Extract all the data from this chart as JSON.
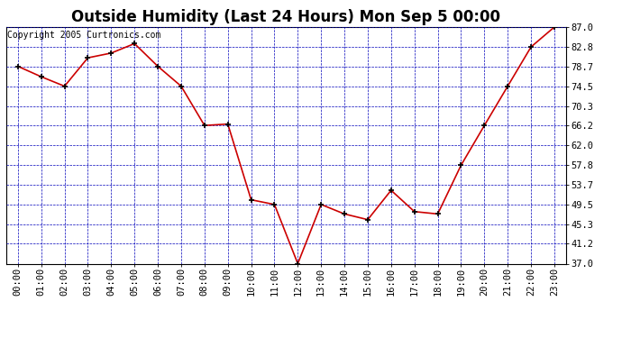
{
  "title": "Outside Humidity (Last 24 Hours) Mon Sep 5 00:00",
  "copyright": "Copyright 2005 Curtronics.com",
  "x_labels": [
    "00:00",
    "01:00",
    "02:00",
    "03:00",
    "04:00",
    "05:00",
    "06:00",
    "07:00",
    "08:00",
    "09:00",
    "10:00",
    "11:00",
    "12:00",
    "13:00",
    "14:00",
    "15:00",
    "16:00",
    "17:00",
    "18:00",
    "19:00",
    "20:00",
    "21:00",
    "22:00",
    "23:00"
  ],
  "y_values": [
    78.7,
    76.5,
    74.5,
    80.5,
    81.5,
    83.5,
    78.7,
    74.5,
    66.2,
    66.5,
    50.5,
    49.5,
    37.0,
    49.5,
    47.5,
    46.3,
    52.5,
    48.0,
    47.5,
    57.8,
    66.2,
    74.5,
    82.8,
    87.0
  ],
  "y_ticks": [
    37.0,
    41.2,
    45.3,
    49.5,
    53.7,
    57.8,
    62.0,
    66.2,
    70.3,
    74.5,
    78.7,
    82.8,
    87.0
  ],
  "ylim": [
    37.0,
    87.0
  ],
  "line_color": "#cc0000",
  "marker_color": "#000000",
  "bg_color": "#ffffff",
  "plot_bg_color": "#ffffff",
  "grid_color": "#0000bb",
  "title_fontsize": 12,
  "copyright_fontsize": 7,
  "tick_fontsize": 7.5
}
